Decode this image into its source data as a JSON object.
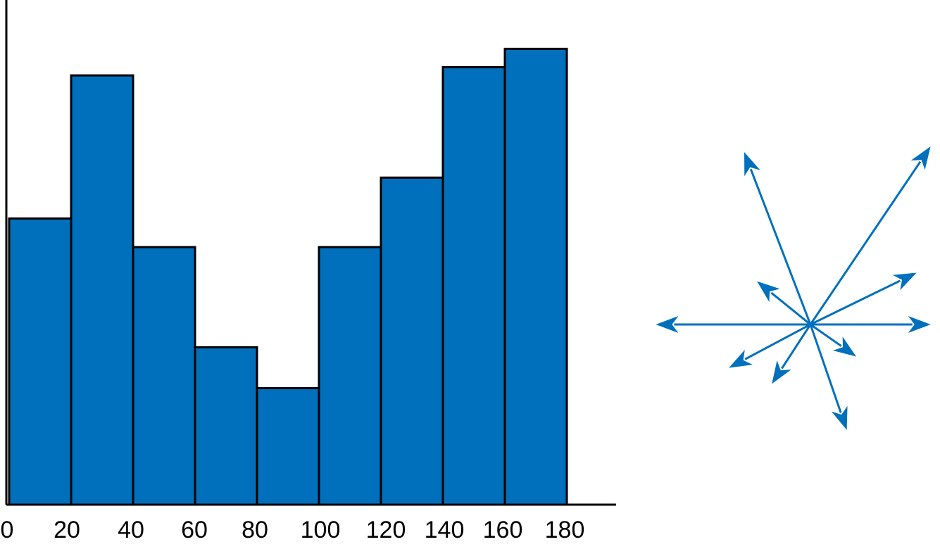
{
  "chart_data": [
    {
      "type": "bar",
      "title": "",
      "xlabel": "",
      "ylabel": "",
      "bin_edges": [
        0,
        20,
        40,
        60,
        80,
        100,
        120,
        140,
        160,
        180
      ],
      "tick_labels": [
        "0",
        "20",
        "40",
        "60",
        "80",
        "100",
        "120",
        "140",
        "160",
        "180"
      ],
      "xlim": [
        0,
        196
      ],
      "values": [
        7.0,
        10.5,
        6.3,
        3.85,
        2.85,
        6.3,
        8.0,
        10.7,
        11.15
      ],
      "ylim": [
        0,
        12
      ],
      "grid": false,
      "color": "#0070bd"
    },
    {
      "type": "vector_diagram",
      "description_units": "arrow angle in degrees (counter-clockwise from +x) and length relative to longest arrow",
      "color": "#0070bd",
      "vectors": [
        {
          "angle": 0,
          "length": 0.56
        },
        {
          "angle": 180,
          "length": 0.72
        },
        {
          "angle": 111,
          "length": 0.86
        },
        {
          "angle": 56,
          "length": 1.0
        },
        {
          "angle": 26,
          "length": 0.55
        },
        {
          "angle": 141,
          "length": 0.32
        },
        {
          "angle": 208,
          "length": 0.43
        },
        {
          "angle": 237,
          "length": 0.33
        },
        {
          "angle": 289,
          "length": 0.52
        },
        {
          "angle": 325,
          "length": 0.26
        }
      ]
    }
  ]
}
